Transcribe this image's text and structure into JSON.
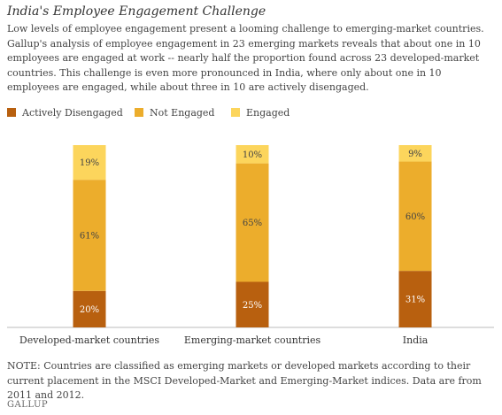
{
  "header": {
    "title": "India's Employee Engagement Challenge",
    "description": "Low levels of employee engagement present a looming challenge to emerging-market countries. Gallup's analysis of employee engagement in 23 emerging markets reveals that about one in 10 employees are engaged at work -- nearly half the proportion found across 23 developed-market countries. This challenge is even more pronounced in India, where only about one in 10 employees are engaged, while about three in 10 are actively disengaged."
  },
  "footer": {
    "note": "NOTE: Countries are classified as emerging markets or developed markets according to their current placement in the MSCI Developed-Market and Emerging-Market indices. Data are from 2011 and 2012.",
    "brand": "GALLUP"
  },
  "chart_data": {
    "type": "bar",
    "stacked": true,
    "title": "",
    "xlabel": "",
    "ylabel": "",
    "ylim": [
      0,
      100
    ],
    "grid": false,
    "legend_position": "top-left",
    "categories": [
      "Developed-market countries",
      "Emerging-market countries",
      "India"
    ],
    "series": [
      {
        "name": "Actively Disengaged",
        "color": "#b8600f",
        "values": [
          20,
          25,
          31
        ],
        "labels": [
          "20%",
          "25%",
          "31%"
        ]
      },
      {
        "name": "Not Engaged",
        "color": "#ecad2c",
        "values": [
          61,
          65,
          60
        ],
        "labels": [
          "61%",
          "65%",
          "60%"
        ]
      },
      {
        "name": "Engaged",
        "color": "#fcd55c",
        "values": [
          19,
          10,
          9
        ],
        "labels": [
          "19%",
          "10%",
          "9%"
        ]
      }
    ]
  }
}
